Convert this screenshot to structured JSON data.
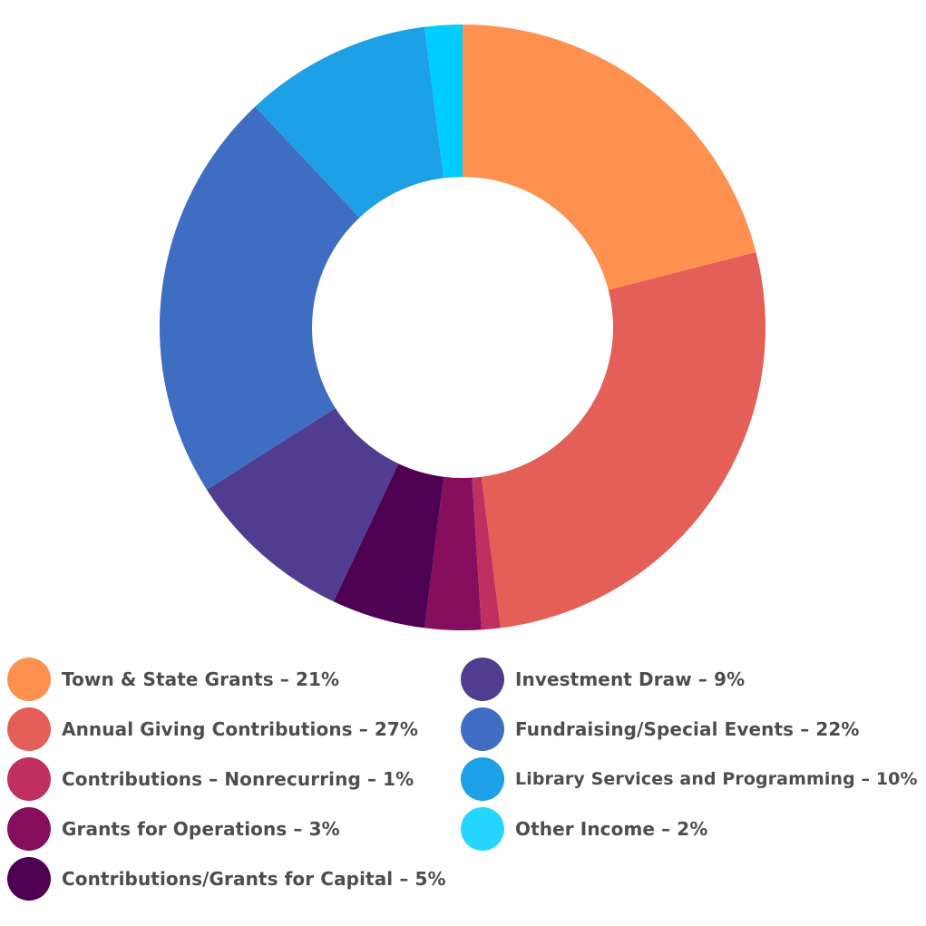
{
  "chart_data": {
    "type": "pie",
    "style": "donut",
    "legend_position": "bottom",
    "categories": [
      "Town & State Grants",
      "Annual Giving Contributions",
      "Contributions – Nonrecurring",
      "Grants for Operations",
      "Contributions/Grants for Capital",
      "Investment Draw",
      "Fundraising/Special Events",
      "Library Services and Programming",
      "Other Income"
    ],
    "values": [
      21,
      27,
      1,
      3,
      5,
      9,
      22,
      10,
      2
    ],
    "colors": [
      "#FF9150",
      "#E35F57",
      "#BF3060",
      "#870E5E",
      "#4E0052",
      "#513D8F",
      "#3F6DC2",
      "#1EA0E6",
      "#00CCFF"
    ],
    "legend": [
      {
        "label": "Town & State Grants – 21%",
        "color": "#FF9150"
      },
      {
        "label": "Annual Giving Contributions – 27%",
        "color": "#E35F57"
      },
      {
        "label": "Contributions – Nonrecurring – 1%",
        "color": "#BF3060"
      },
      {
        "label": "Grants for Operations – 3%",
        "color": "#870E5E"
      },
      {
        "label": "Contributions/Grants for Capital – 5%",
        "color": "#4E0052"
      },
      {
        "label": "Investment Draw – 9%",
        "color": "#513D8F"
      },
      {
        "label": "Fundraising/Special Events – 22%",
        "color": "#3F6DC2"
      },
      {
        "label": "Library Services and Programming – 10%",
        "color": "#1EA0E6"
      },
      {
        "label": "Other Income – 2%",
        "color": "#27D6FF"
      }
    ]
  }
}
